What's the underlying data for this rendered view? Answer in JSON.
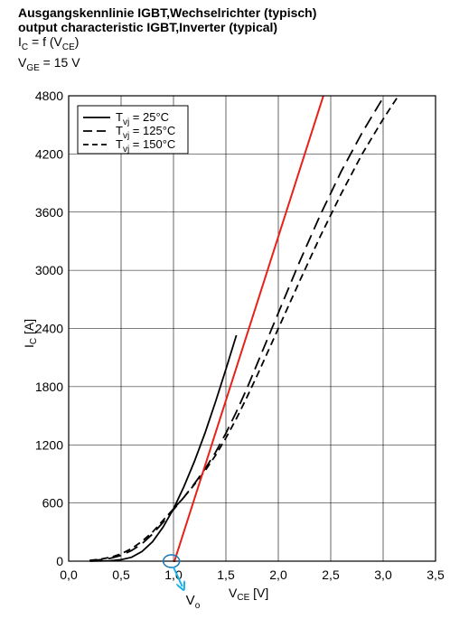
{
  "header": {
    "title_de": "Ausgangskennlinie IGBT,Wechselrichter (typisch)",
    "title_en": "output characteristic IGBT,Inverter (typical)",
    "formula": {
      "main": "I",
      "sub1": "C",
      "eq": " = f (V",
      "sub2": "CE",
      "close": ")"
    },
    "condition": {
      "main": "V",
      "sub": "GE",
      "rest": " = 15 V"
    }
  },
  "chart_data": {
    "type": "line",
    "xlabel": {
      "main": "V",
      "sub": "CE",
      "rest": " [V]"
    },
    "ylabel": {
      "main": "I",
      "sub": "C",
      "rest": " [A]"
    },
    "xlim": [
      0,
      3.5
    ],
    "ylim": [
      0,
      4800
    ],
    "x_ticks": [
      "0,0",
      "0,5",
      "1,0",
      "1,5",
      "2,0",
      "2,5",
      "3,0",
      "3,5"
    ],
    "y_ticks": [
      "0",
      "600",
      "1200",
      "1800",
      "2400",
      "3000",
      "3600",
      "4200",
      "4800"
    ],
    "grid": true,
    "legend_position": "top-left",
    "series": [
      {
        "name": {
          "main": "T",
          "sub": "vj",
          "rest": " = 25°C"
        },
        "style": "solid",
        "color": "#000000",
        "points": [
          [
            0.2,
            0
          ],
          [
            0.4,
            5
          ],
          [
            0.5,
            15
          ],
          [
            0.6,
            40
          ],
          [
            0.7,
            100
          ],
          [
            0.8,
            200
          ],
          [
            0.9,
            350
          ],
          [
            1.0,
            540
          ],
          [
            1.1,
            770
          ],
          [
            1.2,
            1030
          ],
          [
            1.3,
            1320
          ],
          [
            1.4,
            1640
          ],
          [
            1.5,
            1980
          ],
          [
            1.6,
            2330
          ]
        ]
      },
      {
        "name": {
          "main": "T",
          "sub": "vj",
          "rest": " = 125°C"
        },
        "style": "dash-long",
        "color": "#000000",
        "points": [
          [
            0.2,
            5
          ],
          [
            0.3,
            15
          ],
          [
            0.4,
            30
          ],
          [
            0.5,
            60
          ],
          [
            0.6,
            110
          ],
          [
            0.7,
            180
          ],
          [
            0.8,
            280
          ],
          [
            0.9,
            400
          ],
          [
            1.0,
            530
          ],
          [
            1.1,
            660
          ],
          [
            1.2,
            800
          ],
          [
            1.3,
            950
          ],
          [
            1.4,
            1120
          ],
          [
            1.5,
            1320
          ],
          [
            1.6,
            1540
          ],
          [
            1.7,
            1780
          ],
          [
            1.8,
            2040
          ],
          [
            1.9,
            2300
          ],
          [
            2.0,
            2560
          ],
          [
            2.2,
            3080
          ],
          [
            2.4,
            3570
          ],
          [
            2.6,
            4020
          ],
          [
            2.8,
            4420
          ],
          [
            3.0,
            4780
          ],
          [
            3.2,
            5100
          ]
        ]
      },
      {
        "name": {
          "main": "T",
          "sub": "vj",
          "rest": " = 150°C"
        },
        "style": "dash-short",
        "color": "#000000",
        "points": [
          [
            0.2,
            8
          ],
          [
            0.3,
            20
          ],
          [
            0.4,
            40
          ],
          [
            0.5,
            75
          ],
          [
            0.6,
            130
          ],
          [
            0.7,
            205
          ],
          [
            0.8,
            300
          ],
          [
            0.9,
            420
          ],
          [
            1.0,
            540
          ],
          [
            1.1,
            660
          ],
          [
            1.2,
            790
          ],
          [
            1.3,
            930
          ],
          [
            1.4,
            1090
          ],
          [
            1.5,
            1270
          ],
          [
            1.6,
            1470
          ],
          [
            1.7,
            1690
          ],
          [
            1.8,
            1920
          ],
          [
            1.9,
            2160
          ],
          [
            2.0,
            2400
          ],
          [
            2.2,
            2880
          ],
          [
            2.4,
            3350
          ],
          [
            2.6,
            3790
          ],
          [
            2.8,
            4200
          ],
          [
            3.0,
            4560
          ],
          [
            3.2,
            4890
          ],
          [
            3.4,
            5200
          ]
        ]
      }
    ],
    "annotations": {
      "tangent": {
        "color": "#e8201a",
        "points": [
          [
            0.95,
            -200
          ],
          [
            2.43,
            4800
          ]
        ]
      },
      "vo_marker": {
        "color": "#1a74b8",
        "x": 0.98,
        "y": 0
      },
      "vo_arrow": {
        "color": "#19b0e8"
      },
      "vo_label": {
        "main": "V",
        "sub": "o"
      }
    }
  }
}
